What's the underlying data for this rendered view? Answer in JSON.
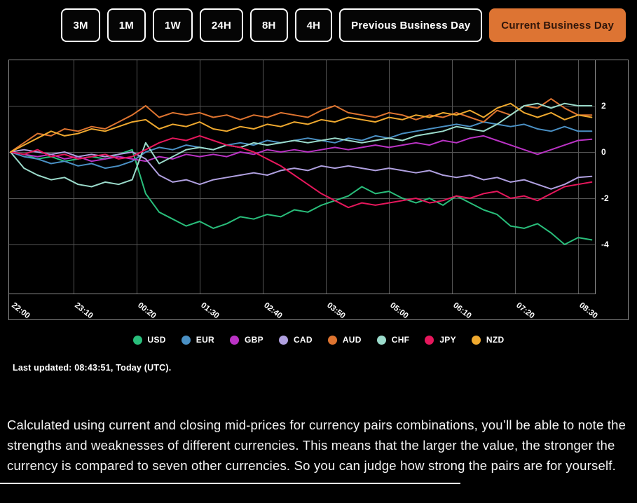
{
  "toolbar": {
    "buttons": [
      {
        "label": "3M",
        "active": false
      },
      {
        "label": "1M",
        "active": false
      },
      {
        "label": "1W",
        "active": false
      },
      {
        "label": "24H",
        "active": false
      },
      {
        "label": "8H",
        "active": false
      },
      {
        "label": "4H",
        "active": false
      },
      {
        "label": "Previous Business Day",
        "active": false
      },
      {
        "label": "Current Business Day",
        "active": true
      }
    ],
    "active_color": "#DD7433"
  },
  "chart_data": {
    "type": "line",
    "title": "",
    "xlabel": "",
    "ylabel": "",
    "x_labels": [
      "22:00",
      "23:10",
      "00:20",
      "01:30",
      "02:40",
      "03:50",
      "05:00",
      "06:10",
      "07:20",
      "08:30"
    ],
    "y_ticks": [
      2,
      0,
      -2,
      -4
    ],
    "ylim": [
      -6.1,
      4.0
    ],
    "x_interval_minutes": 15,
    "grid": true,
    "legend_position": "bottom",
    "colors": {
      "background": "#000000",
      "grid": "#555555",
      "border": "#8a8a8a",
      "tick_text": "#ffffff"
    },
    "series": [
      {
        "name": "USD",
        "color": "#29BE7B",
        "values": [
          0,
          -0.1,
          -0.3,
          -0.2,
          -0.4,
          -0.3,
          -0.2,
          -0.3,
          -0.1,
          0.1,
          -1.8,
          -2.6,
          -2.9,
          -3.2,
          -3.0,
          -3.3,
          -3.1,
          -2.8,
          -2.9,
          -2.7,
          -2.8,
          -2.5,
          -2.6,
          -2.3,
          -2.1,
          -1.9,
          -1.5,
          -1.8,
          -1.7,
          -2.0,
          -2.2,
          -2.0,
          -2.3,
          -1.9,
          -2.2,
          -2.5,
          -2.7,
          -3.2,
          -3.3,
          -3.1,
          -3.5,
          -4.0,
          -3.7,
          -3.8
        ]
      },
      {
        "name": "EUR",
        "color": "#4A90C4",
        "values": [
          0,
          -0.2,
          -0.3,
          -0.5,
          -0.4,
          -0.6,
          -0.5,
          -0.7,
          -0.6,
          -0.4,
          0.0,
          0.2,
          0.1,
          0.3,
          0.2,
          0.1,
          0.3,
          0.4,
          0.3,
          0.5,
          0.4,
          0.5,
          0.6,
          0.5,
          0.4,
          0.6,
          0.5,
          0.7,
          0.6,
          0.8,
          0.9,
          1.0,
          1.1,
          1.2,
          1.1,
          1.3,
          1.2,
          1.1,
          1.2,
          1.0,
          0.9,
          1.1,
          0.9,
          0.9
        ]
      },
      {
        "name": "GBP",
        "color": "#BB33C5",
        "values": [
          0,
          -0.1,
          -0.2,
          -0.1,
          -0.3,
          -0.2,
          -0.4,
          -0.3,
          -0.2,
          -0.3,
          -0.4,
          -0.2,
          -0.3,
          -0.1,
          -0.2,
          -0.1,
          -0.2,
          0.0,
          -0.1,
          0.1,
          0.0,
          0.1,
          0.0,
          0.1,
          0.2,
          0.1,
          0.2,
          0.3,
          0.2,
          0.3,
          0.4,
          0.3,
          0.5,
          0.4,
          0.6,
          0.7,
          0.5,
          0.3,
          0.1,
          -0.1,
          0.1,
          0.3,
          0.5,
          0.55
        ]
      },
      {
        "name": "CAD",
        "color": "#B0A0E0",
        "values": [
          0,
          0.1,
          0.0,
          -0.1,
          0.0,
          -0.2,
          -0.1,
          -0.2,
          -0.1,
          0.0,
          -0.3,
          -1.0,
          -1.3,
          -1.2,
          -1.4,
          -1.2,
          -1.1,
          -1.0,
          -0.9,
          -1.0,
          -0.8,
          -0.7,
          -0.8,
          -0.6,
          -0.7,
          -0.6,
          -0.7,
          -0.8,
          -0.7,
          -0.8,
          -0.9,
          -0.8,
          -1.0,
          -1.1,
          -1.0,
          -1.2,
          -1.1,
          -1.3,
          -1.2,
          -1.4,
          -1.6,
          -1.4,
          -1.1,
          -1.05
        ]
      },
      {
        "name": "AUD",
        "color": "#DE7430",
        "values": [
          0,
          0.4,
          0.8,
          0.7,
          1.0,
          0.9,
          1.1,
          1.0,
          1.3,
          1.6,
          2.0,
          1.5,
          1.7,
          1.6,
          1.7,
          1.5,
          1.6,
          1.4,
          1.6,
          1.5,
          1.7,
          1.6,
          1.5,
          1.8,
          2.0,
          1.7,
          1.6,
          1.5,
          1.7,
          1.6,
          1.4,
          1.6,
          1.5,
          1.7,
          1.5,
          1.3,
          1.8,
          1.6,
          2.0,
          1.9,
          2.3,
          1.9,
          1.6,
          1.6
        ]
      },
      {
        "name": "CHF",
        "color": "#9BDBCB",
        "values": [
          0,
          -0.7,
          -1.0,
          -1.2,
          -1.1,
          -1.4,
          -1.5,
          -1.3,
          -1.4,
          -1.2,
          0.4,
          -0.5,
          -0.2,
          0.1,
          0.2,
          0.1,
          0.3,
          0.2,
          0.4,
          0.3,
          0.4,
          0.5,
          0.4,
          0.5,
          0.6,
          0.5,
          0.4,
          0.5,
          0.6,
          0.5,
          0.7,
          0.8,
          0.9,
          1.1,
          1.0,
          0.9,
          1.2,
          1.6,
          2.0,
          2.1,
          1.9,
          2.1,
          2.0,
          2.0
        ]
      },
      {
        "name": "JPY",
        "color": "#E6175C",
        "values": [
          0,
          -0.1,
          0.1,
          -0.2,
          -0.1,
          -0.3,
          -0.2,
          -0.1,
          -0.3,
          -0.2,
          0.1,
          0.4,
          0.6,
          0.5,
          0.7,
          0.5,
          0.3,
          0.2,
          0.0,
          -0.3,
          -0.6,
          -1.0,
          -1.4,
          -1.8,
          -2.1,
          -2.4,
          -2.2,
          -2.3,
          -2.2,
          -2.1,
          -2.0,
          -2.2,
          -2.1,
          -1.9,
          -2.0,
          -1.8,
          -1.7,
          -2.0,
          -1.9,
          -2.1,
          -1.8,
          -1.5,
          -1.4,
          -1.3
        ]
      },
      {
        "name": "NZD",
        "color": "#EFA92F",
        "values": [
          0,
          0.3,
          0.6,
          0.9,
          0.7,
          0.8,
          1.0,
          0.9,
          1.1,
          1.3,
          1.4,
          1.0,
          1.2,
          1.1,
          1.3,
          1.0,
          0.9,
          1.1,
          1.0,
          1.2,
          1.1,
          1.3,
          1.2,
          1.4,
          1.3,
          1.5,
          1.4,
          1.3,
          1.5,
          1.4,
          1.6,
          1.5,
          1.7,
          1.6,
          1.8,
          1.5,
          1.9,
          2.1,
          1.7,
          1.5,
          1.7,
          1.4,
          1.6,
          1.5
        ]
      }
    ]
  },
  "status": {
    "last_updated": "Last updated: 08:43:51, Today (UTC)."
  },
  "description": "Calculated using current and closing mid-prices for currency pairs combinations, you’ll be able to note the strengths and weaknesses of different currencies. This means that the larger the value, the stronger the currency is compared to seven other currencies. So you can judge how strong the pairs are for yourself."
}
